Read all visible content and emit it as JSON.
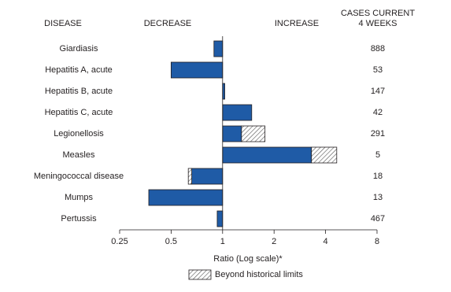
{
  "chart_data": {
    "type": "bar",
    "orientation": "horizontal",
    "disease_header": "DISEASE",
    "decrease_label": "DECREASE",
    "increase_label": "INCREASE",
    "cases_header": [
      "CASES CURRENT",
      "4 WEEKS"
    ],
    "categories": [
      "Giardiasis",
      "Hepatitis A, acute",
      "Hepatitis B, acute",
      "Hepatitis C, acute",
      "Legionellosis",
      "Measles",
      "Meningococcal disease",
      "Mumps",
      "Pertussis"
    ],
    "values": [
      0.89,
      0.5,
      1.03,
      1.48,
      1.77,
      4.65,
      0.63,
      0.37,
      0.93
    ],
    "limits": [
      null,
      null,
      null,
      null,
      1.29,
      3.31,
      0.66,
      null,
      null
    ],
    "cases": [
      888,
      53,
      147,
      42,
      291,
      5,
      18,
      13,
      467
    ],
    "color": "#1f5ba6",
    "xlabel": "Ratio (Log scale)*",
    "legend_label": "Beyond historical limits",
    "log_scale": true,
    "xlim": [
      0.25,
      8
    ],
    "xticks": [
      0.25,
      0.5,
      1,
      2,
      4,
      8
    ]
  }
}
